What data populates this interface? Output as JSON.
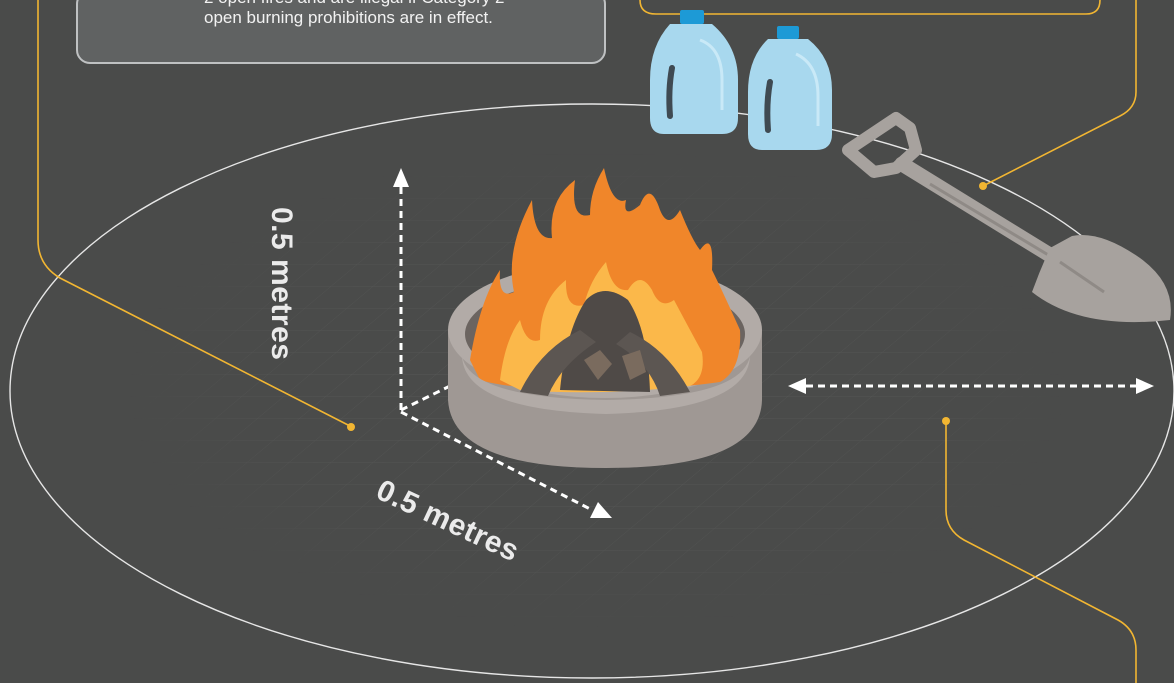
{
  "note": {
    "lines": [
      "2 open fires and are illegal if  Category 2",
      "open burning prohibitions are in effect."
    ]
  },
  "dimensions": {
    "height_label": "0.5 metres",
    "width_label": "0.5 metres"
  },
  "colors": {
    "background": "#4a4b4a",
    "callout_line": "#f2b632",
    "dashed_arrow": "#ffffff",
    "ground_ellipse": "#ffffff",
    "fire_pit_ring": "#b1aaa6",
    "flame_outer": "#f0862a",
    "flame_inner": "#fbb84a",
    "water_jug": "#a8d8ee",
    "jug_cap": "#1d9ad6",
    "shovel": "#a7a29e"
  },
  "icons": [
    "water-jug-icon",
    "shovel-icon",
    "fire-pit-icon",
    "dashed-arrow-icon"
  ]
}
